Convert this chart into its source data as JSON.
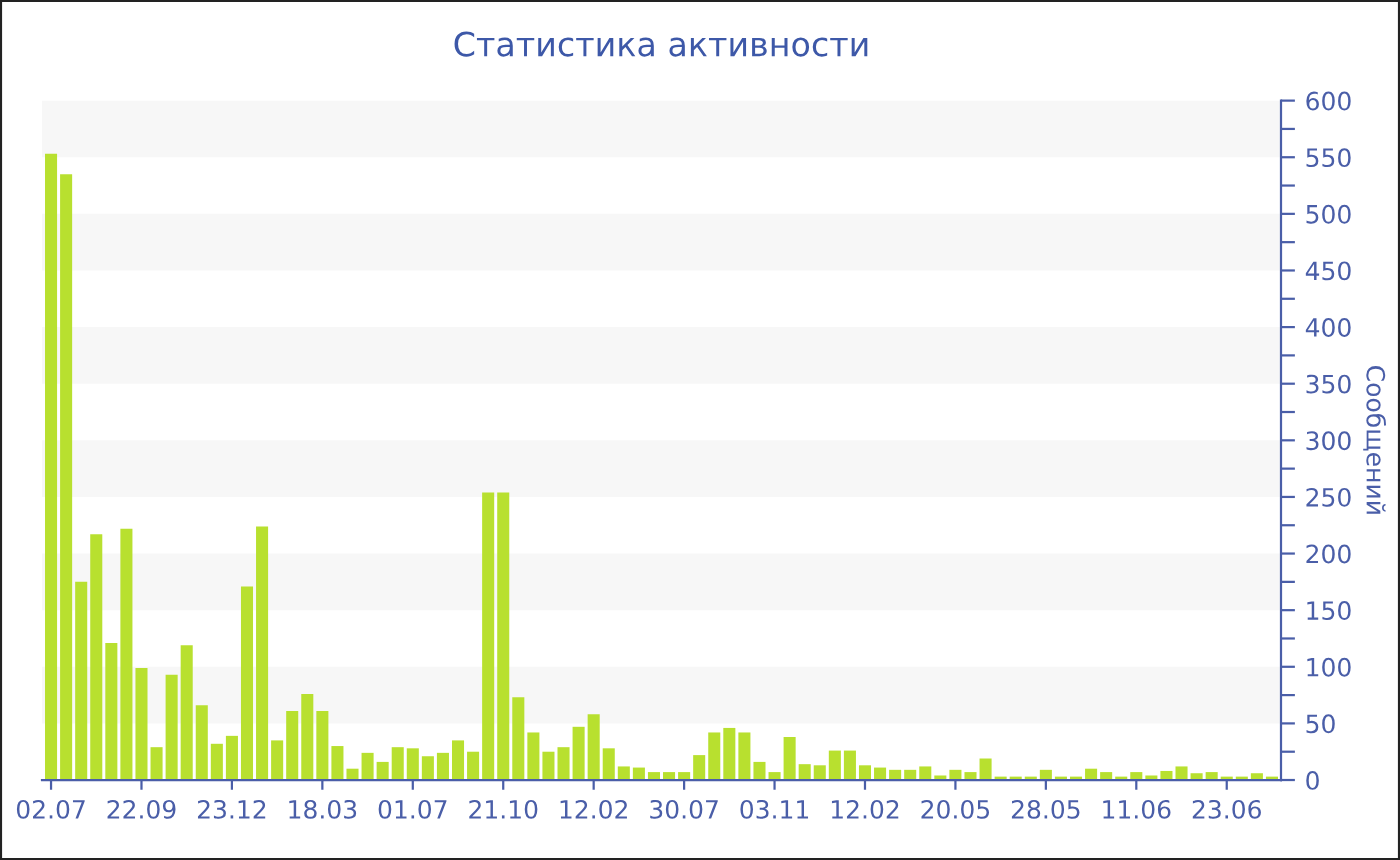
{
  "chart_data": {
    "type": "bar",
    "title": "Статистика активности",
    "ylabel": "Сообщений",
    "categories": [
      "02.07",
      null,
      null,
      null,
      null,
      null,
      "22.09",
      null,
      null,
      null,
      null,
      null,
      "23.12",
      null,
      null,
      null,
      null,
      null,
      "18.03",
      null,
      null,
      null,
      null,
      null,
      "01.07",
      null,
      null,
      null,
      null,
      null,
      "21.10",
      null,
      null,
      null,
      null,
      null,
      "12.02",
      null,
      null,
      null,
      null,
      null,
      "30.07",
      null,
      null,
      null,
      null,
      null,
      "03.11",
      null,
      null,
      null,
      null,
      null,
      "12.02",
      null,
      null,
      null,
      null,
      null,
      "20.05",
      null,
      null,
      null,
      null,
      null,
      "28.05",
      null,
      null,
      null,
      null,
      null,
      "11.06",
      null,
      null,
      null,
      null,
      null,
      "23.06",
      null,
      null,
      null
    ],
    "values": [
      553,
      535,
      175,
      217,
      121,
      222,
      99,
      29,
      93,
      119,
      66,
      32,
      39,
      171,
      224,
      35,
      61,
      76,
      61,
      30,
      10,
      24,
      16,
      29,
      28,
      21,
      24,
      35,
      25,
      254,
      254,
      73,
      42,
      25,
      29,
      47,
      58,
      28,
      12,
      11,
      7,
      7,
      7,
      22,
      42,
      46,
      42,
      16,
      7,
      38,
      14,
      13,
      26,
      26,
      13,
      11,
      9,
      9,
      12,
      4,
      9,
      7,
      19,
      3,
      3,
      3,
      9,
      3,
      3,
      10,
      7,
      3,
      7,
      4,
      8,
      12,
      6,
      7,
      3,
      3,
      6,
      3
    ],
    "color": "#b8e02f",
    "ylim": [
      0,
      600
    ],
    "yticks": [
      0,
      {
        "value": 25,
        "label": null
      },
      50,
      {
        "value": 75,
        "label": null
      },
      100,
      {
        "value": 125,
        "label": null
      },
      150,
      {
        "value": 175,
        "label": null
      },
      200,
      {
        "value": 225,
        "label": null
      },
      250,
      {
        "value": 275,
        "label": null
      },
      300,
      {
        "value": 325,
        "label": null
      },
      350,
      {
        "value": 375,
        "label": null
      },
      400,
      {
        "value": 425,
        "label": null
      },
      450,
      {
        "value": 475,
        "label": null
      },
      500,
      {
        "value": 525,
        "label": null
      },
      550,
      {
        "value": 575,
        "label": null
      },
      600
    ],
    "bands": [
      {
        "axis": "y",
        "from": 50,
        "to": 100,
        "color": "#f7f7f7"
      },
      {
        "axis": "y",
        "from": 150,
        "to": 200,
        "color": "#f7f7f7"
      },
      {
        "axis": "y",
        "from": 250,
        "to": 300,
        "color": "#f7f7f7"
      },
      {
        "axis": "y",
        "from": 350,
        "to": 400,
        "color": "#f7f7f7"
      },
      {
        "axis": "y",
        "from": 450,
        "to": 500,
        "color": "#f7f7f7"
      },
      {
        "axis": "y",
        "from": 550,
        "to": 600,
        "color": "#f7f7f7"
      }
    ],
    "grid": false,
    "legend": false
  }
}
